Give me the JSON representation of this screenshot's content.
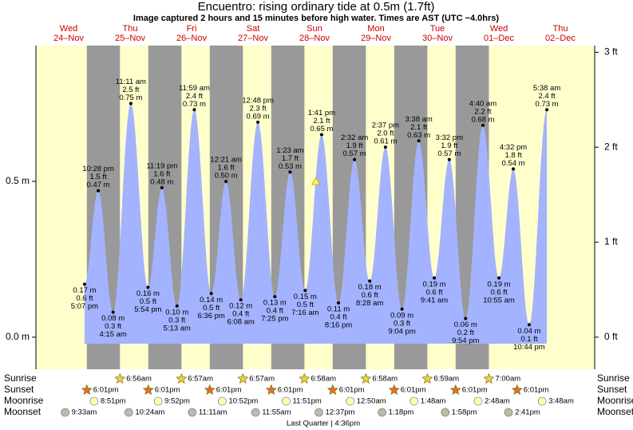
{
  "chart_data": {
    "type": "area",
    "title": "Encuentro: rising  ordinary tide at 0.5m (1.7ft)",
    "subtitle": "Image captured 2 hours and 15 minutes before high water. Times are AST (UTC −4.0hrs)",
    "days": [
      {
        "weekday": "Wed",
        "date": "24–Nov"
      },
      {
        "weekday": "Thu",
        "date": "25–Nov"
      },
      {
        "weekday": "Fri",
        "date": "26–Nov"
      },
      {
        "weekday": "Sat",
        "date": "27–Nov"
      },
      {
        "weekday": "Sun",
        "date": "28–Nov"
      },
      {
        "weekday": "Mon",
        "date": "29–Nov"
      },
      {
        "weekday": "Tue",
        "date": "30–Nov"
      },
      {
        "weekday": "Wed",
        "date": "01–Dec"
      },
      {
        "weekday": "Thu",
        "date": "02–Dec"
      }
    ],
    "ylim": [
      -0.103,
      0.936
    ],
    "yticks": [
      {
        "value": 0,
        "label": "0.0 m"
      },
      {
        "value": 0.5,
        "label": "0.5 m"
      }
    ],
    "y2lim": [
      -0.338,
      3.071
    ],
    "y2ticks": [
      {
        "value": 0,
        "label": "0 ft"
      },
      {
        "value": 1,
        "label": "1 ft"
      },
      {
        "value": 2,
        "label": "2 ft"
      },
      {
        "value": 3,
        "label": "3 ft"
      }
    ],
    "day_color": "#ffffcc",
    "night_color": "#999999",
    "series": [
      {
        "color": "#a3b3ff",
        "dates": [
          "24–Nov",
          "24–Nov",
          "25–Nov",
          "25–Nov",
          "25–Nov",
          "25–Nov",
          "26–Nov",
          "26–Nov",
          "26–Nov",
          "27–Nov",
          "27–Nov",
          "27–Nov",
          "27–Nov",
          "28–Nov",
          "28–Nov",
          "28–Nov",
          "28–Nov",
          "29–Nov",
          "29–Nov",
          "29–Nov",
          "29–Nov",
          "30–Nov",
          "30–Nov",
          "30–Nov",
          "30–Nov",
          "01–Dec",
          "01–Dec",
          "01–Dec",
          "01–Dec",
          "02–Dec"
        ],
        "time_labels": [
          "5:07 pm",
          "10:28 pm",
          "4:15 am",
          "11:11 am",
          "5:54 pm",
          "11:19 pm",
          "5:13 am",
          "11:59 am",
          "6:36 pm",
          "12:21 am",
          "6:08 am",
          "12:48 pm",
          "7:25 pm",
          "1:23 am",
          "7:16 am",
          "1:41 pm",
          "8:16 pm",
          "2:32 am",
          "8:28 am",
          "2:37 pm",
          "9:04 pm",
          "3:38 am",
          "9:41 am",
          "3:32 pm",
          "9:54 pm",
          "4:40 am",
          "10:55 am",
          "4:32 pm",
          "10:44 pm",
          "5:38 am"
        ],
        "values": [
          0.17,
          0.47,
          0.08,
          0.75,
          0.16,
          0.48,
          0.1,
          0.73,
          0.14,
          0.5,
          0.12,
          0.69,
          0.13,
          0.53,
          0.15,
          0.65,
          0.11,
          0.57,
          0.18,
          0.61,
          0.09,
          0.63,
          0.19,
          0.57,
          0.06,
          0.68,
          0.19,
          0.54,
          0.04,
          0.73
        ],
        "value_labels": [
          "0.17 m",
          "0.47 m",
          "0.08 m",
          "0.75 m",
          "0.16 m",
          "0.48 m",
          "0.10 m",
          "0.73 m",
          "0.14 m",
          "0.50 m",
          "0.12 m",
          "0.69 m",
          "0.13 m",
          "0.53 m",
          "0.15 m",
          "0.65 m",
          "0.11 m",
          "0.57 m",
          "0.18 m",
          "0.61 m",
          "0.09 m",
          "0.63 m",
          "0.19 m",
          "0.57 m",
          "0.06 m",
          "0.68 m",
          "0.19 m",
          "0.54 m",
          "0.04 m",
          "0.73 m"
        ],
        "feet_labels": [
          "0.6 ft",
          "1.5 ft",
          "0.3 ft",
          "2.5 ft",
          "0.5 ft",
          "1.6 ft",
          "0.3 ft",
          "2.4 ft",
          "0.5 ft",
          "1.6 ft",
          "0.4 ft",
          "2.3 ft",
          "0.4 ft",
          "1.7 ft",
          "0.5 ft",
          "2.1 ft",
          "0.4 ft",
          "1.9 ft",
          "0.6 ft",
          "2.0 ft",
          "0.3 ft",
          "2.1 ft",
          "0.6 ft",
          "1.9 ft",
          "0.2 ft",
          "2.2 ft",
          "0.6 ft",
          "1.8 ft",
          "0.1 ft",
          "2.4 ft"
        ]
      }
    ],
    "now": {
      "date": "28–Nov",
      "time": "11:26 am",
      "value": 0.5,
      "color": "#ffee55"
    },
    "astro": [
      {
        "label": "Sunrise",
        "color": "#e8d040",
        "shape": "star",
        "events": [
          {
            "date": "25–Nov",
            "time": "6:56am"
          },
          {
            "date": "26–Nov",
            "time": "6:57am"
          },
          {
            "date": "27–Nov",
            "time": "6:57am"
          },
          {
            "date": "28–Nov",
            "time": "6:58am"
          },
          {
            "date": "29–Nov",
            "time": "6:58am"
          },
          {
            "date": "30–Nov",
            "time": "6:59am"
          },
          {
            "date": "01–Dec",
            "time": "7:00am"
          }
        ]
      },
      {
        "label": "Sunset",
        "color": "#e07028",
        "shape": "star",
        "events": [
          {
            "date": "24–Nov",
            "time": "6:01pm"
          },
          {
            "date": "25–Nov",
            "time": "6:01pm"
          },
          {
            "date": "26–Nov",
            "time": "6:01pm"
          },
          {
            "date": "27–Nov",
            "time": "6:01pm"
          },
          {
            "date": "28–Nov",
            "time": "6:01pm"
          },
          {
            "date": "29–Nov",
            "time": "6:01pm"
          },
          {
            "date": "30–Nov",
            "time": "6:01pm"
          },
          {
            "date": "01–Dec",
            "time": "6:01pm"
          }
        ]
      },
      {
        "label": "Moonrise",
        "color": "#ffffbb",
        "shape": "circle",
        "events": [
          {
            "date": "24–Nov",
            "time": "8:51pm"
          },
          {
            "date": "25–Nov",
            "time": "9:52pm"
          },
          {
            "date": "26–Nov",
            "time": "10:52pm"
          },
          {
            "date": "27–Nov",
            "time": "11:51pm"
          },
          {
            "date": "29–Nov",
            "time": "12:50am"
          },
          {
            "date": "30–Nov",
            "time": "1:48am"
          },
          {
            "date": "01–Dec",
            "time": "2:48am"
          },
          {
            "date": "02–Dec",
            "time": "3:48am"
          }
        ]
      },
      {
        "label": "Moonset",
        "color": "#bbbbaa",
        "shape": "circle",
        "events": [
          {
            "date": "24–Nov",
            "time": "9:33am"
          },
          {
            "date": "25–Nov",
            "time": "10:24am"
          },
          {
            "date": "26–Nov",
            "time": "11:11am"
          },
          {
            "date": "27–Nov",
            "time": "11:55am"
          },
          {
            "date": "28–Nov",
            "time": "12:37pm"
          },
          {
            "date": "29–Nov",
            "time": "1:18pm"
          },
          {
            "date": "30–Nov",
            "time": "1:58pm"
          },
          {
            "date": "01–Dec",
            "time": "2:41pm"
          }
        ]
      }
    ],
    "moon_phase": "Last Quarter | 4:36pm"
  }
}
